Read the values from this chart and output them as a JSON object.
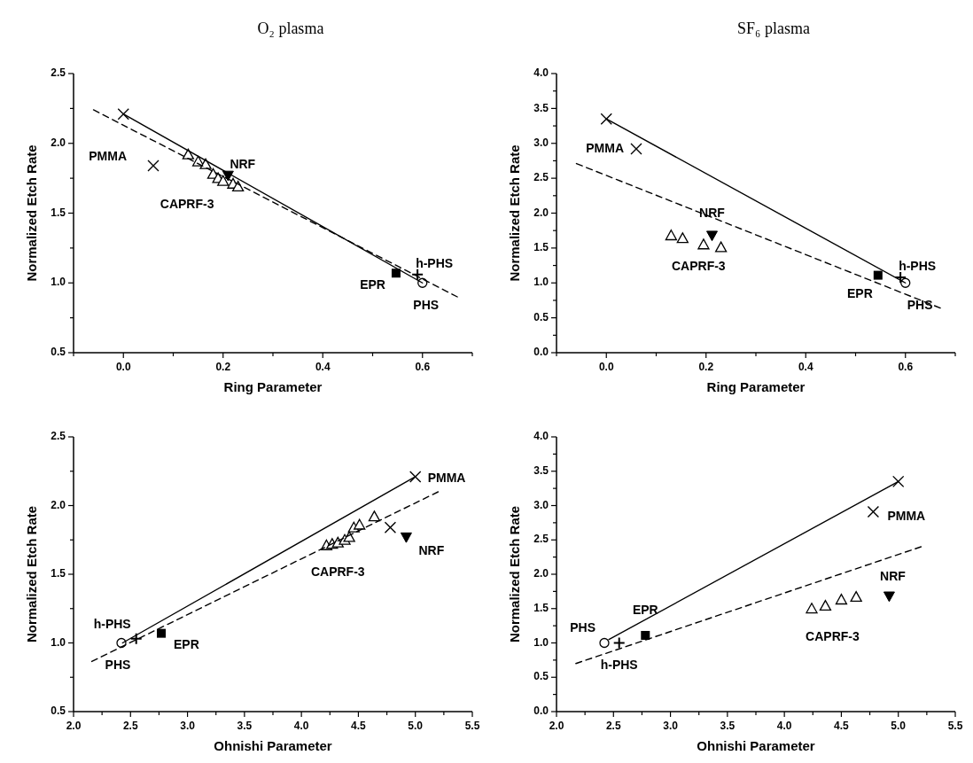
{
  "chart_data": [
    {
      "type": "scatter",
      "title": "O₂ plasma",
      "xlabel": "Ring Parameter",
      "ylabel": "Normalized Etch Rate",
      "xlim": [
        -0.1,
        0.7
      ],
      "ylim": [
        0.5,
        2.5
      ],
      "xticks": [
        {
          "value": -0.1,
          "label": null
        },
        {
          "value": 0,
          "label": "0.0"
        },
        {
          "value": 0.1,
          "label": null
        },
        0.2,
        {
          "value": 0.3,
          "label": null
        },
        0.4,
        {
          "value": 0.5,
          "label": null
        },
        0.6,
        {
          "value": 0.7,
          "label": null
        }
      ],
      "yticks": [
        0.5,
        {
          "value": 0.75,
          "label": null
        },
        {
          "value": 1,
          "label": "1.0"
        },
        {
          "value": 1.25,
          "label": null
        },
        1.5,
        {
          "value": 1.75,
          "label": null
        },
        {
          "value": 2,
          "label": "2.0"
        },
        {
          "value": 2.25,
          "label": null
        },
        2.5
      ],
      "series": [
        {
          "name": "PMMA",
          "color": "#000000",
          "marker": "cross",
          "x": [
            0.0,
            0.06
          ],
          "values": [
            2.21,
            1.84
          ]
        },
        {
          "name": "CAPRF-3",
          "color": "#000000",
          "marker": "triangle",
          "x": [
            0.13,
            0.15,
            0.165,
            0.18,
            0.19,
            0.2,
            0.22,
            0.23
          ],
          "values": [
            1.92,
            1.87,
            1.85,
            1.78,
            1.75,
            1.73,
            1.71,
            1.69
          ]
        },
        {
          "name": "NRF",
          "color": "#000000",
          "marker": "triangle-down",
          "x": [
            0.21
          ],
          "values": [
            1.77
          ]
        },
        {
          "name": "EPR",
          "color": "#000000",
          "marker": "square",
          "x": [
            0.547
          ],
          "values": [
            1.07
          ]
        },
        {
          "name": "h-PHS",
          "color": "#000000",
          "marker": "plus",
          "x": [
            0.59
          ],
          "values": [
            1.06
          ]
        },
        {
          "name": "PHS",
          "color": "#000000",
          "marker": "circle",
          "x": [
            0.6
          ],
          "values": [
            1.0
          ]
        },
        {
          "type": "line",
          "color": "#000000",
          "line_style": "solid",
          "marker": "none",
          "x": [
            0.0,
            0.6
          ],
          "values": [
            2.21,
            1.0
          ]
        },
        {
          "type": "line",
          "color": "#000000",
          "line_style": "dashed",
          "marker": "none",
          "x": [
            -0.06,
            0.67
          ],
          "values": [
            2.24,
            0.9
          ]
        }
      ]
    },
    {
      "type": "scatter",
      "title": "SF₆ plasma",
      "xlabel": "Ring Parameter",
      "ylabel": "Normalized Etch Rate",
      "xlim": [
        -0.1,
        0.7
      ],
      "ylim": [
        0,
        4
      ],
      "xticks": [
        {
          "value": -0.1,
          "label": null
        },
        {
          "value": 0,
          "label": "0.0"
        },
        {
          "value": 0.1,
          "label": null
        },
        0.2,
        {
          "value": 0.3,
          "label": null
        },
        0.4,
        {
          "value": 0.5,
          "label": null
        },
        0.6,
        {
          "value": 0.7,
          "label": null
        }
      ],
      "yticks": [
        {
          "value": 0,
          "label": "0.0"
        },
        {
          "value": 0.25,
          "label": null
        },
        0.5,
        {
          "value": 0.75,
          "label": null
        },
        {
          "value": 1,
          "label": "1.0"
        },
        {
          "value": 1.25,
          "label": null
        },
        1.5,
        {
          "value": 1.75,
          "label": null
        },
        {
          "value": 2,
          "label": "2.0"
        },
        {
          "value": 2.25,
          "label": null
        },
        2.5,
        {
          "value": 2.75,
          "label": null
        },
        {
          "value": 3,
          "label": "3.0"
        },
        {
          "value": 3.25,
          "label": null
        },
        3.5,
        {
          "value": 3.75,
          "label": null
        },
        {
          "value": 4,
          "label": "4.0"
        }
      ],
      "series": [
        {
          "name": "PMMA",
          "color": "#000000",
          "marker": "cross",
          "x": [
            0.0,
            0.06
          ],
          "values": [
            3.35,
            2.92
          ]
        },
        {
          "name": "CAPRF-3",
          "color": "#000000",
          "marker": "triangle",
          "x": [
            0.13,
            0.153,
            0.195,
            0.23
          ],
          "values": [
            1.68,
            1.64,
            1.55,
            1.51
          ]
        },
        {
          "name": "NRF",
          "color": "#000000",
          "marker": "triangle-down",
          "x": [
            0.212
          ],
          "values": [
            1.68
          ]
        },
        {
          "name": "EPR",
          "color": "#000000",
          "marker": "square",
          "x": [
            0.545
          ],
          "values": [
            1.11
          ]
        },
        {
          "name": "h-PHS",
          "color": "#000000",
          "marker": "plus",
          "x": [
            0.59
          ],
          "values": [
            1.08
          ]
        },
        {
          "name": "PHS",
          "color": "#000000",
          "marker": "circle",
          "x": [
            0.6
          ],
          "values": [
            1.0
          ]
        },
        {
          "type": "line",
          "color": "#000000",
          "line_style": "solid",
          "marker": "none",
          "x": [
            0.0,
            0.6
          ],
          "values": [
            3.35,
            1.0
          ]
        },
        {
          "type": "line",
          "color": "#000000",
          "line_style": "dashed",
          "marker": "none",
          "x": [
            -0.06,
            0.67
          ],
          "values": [
            2.71,
            0.64
          ]
        }
      ]
    },
    {
      "type": "scatter",
      "xlabel": "Ohnishi Parameter",
      "ylabel": "Normalized Etch Rate",
      "xlim": [
        2,
        5.5
      ],
      "ylim": [
        0.5,
        2.5
      ],
      "xticks": [
        {
          "value": 2,
          "label": "2.0"
        },
        {
          "value": 2.25,
          "label": null
        },
        2.5,
        {
          "value": 2.75,
          "label": null
        },
        {
          "value": 3,
          "label": "3.0"
        },
        {
          "value": 3.25,
          "label": null
        },
        3.5,
        {
          "value": 3.75,
          "label": null
        },
        {
          "value": 4,
          "label": "4.0"
        },
        {
          "value": 4.25,
          "label": null
        },
        4.5,
        {
          "value": 4.75,
          "label": null
        },
        {
          "value": 5,
          "label": "5.0"
        },
        {
          "value": 5.25,
          "label": null
        },
        5.5
      ],
      "yticks": [
        0.5,
        {
          "value": 0.75,
          "label": null
        },
        {
          "value": 1,
          "label": "1.0"
        },
        {
          "value": 1.25,
          "label": null
        },
        1.5,
        {
          "value": 1.75,
          "label": null
        },
        {
          "value": 2,
          "label": "2.0"
        },
        {
          "value": 2.25,
          "label": null
        },
        2.5
      ],
      "series": [
        {
          "name": "PMMA",
          "color": "#000000",
          "marker": "cross",
          "x": [
            5.0,
            4.78
          ],
          "values": [
            2.21,
            1.84
          ]
        },
        {
          "name": "CAPRF-3",
          "color": "#000000",
          "marker": "triangle",
          "x": [
            4.22,
            4.27,
            4.32,
            4.38,
            4.42,
            4.46,
            4.51,
            4.64
          ],
          "values": [
            1.71,
            1.72,
            1.73,
            1.75,
            1.77,
            1.84,
            1.86,
            1.92
          ]
        },
        {
          "name": "NRF",
          "color": "#000000",
          "marker": "triangle-down",
          "x": [
            4.92
          ],
          "values": [
            1.77
          ]
        },
        {
          "name": "EPR",
          "color": "#000000",
          "marker": "square",
          "x": [
            2.77
          ],
          "values": [
            1.07
          ]
        },
        {
          "name": "h-PHS",
          "color": "#000000",
          "marker": "plus",
          "x": [
            2.55
          ],
          "values": [
            1.03
          ]
        },
        {
          "name": "PHS",
          "color": "#000000",
          "marker": "circle",
          "x": [
            2.42
          ],
          "values": [
            1.0
          ]
        },
        {
          "type": "line",
          "color": "#000000",
          "line_style": "solid",
          "marker": "none",
          "x": [
            2.43,
            5.0
          ],
          "values": [
            1.0,
            2.21
          ]
        },
        {
          "type": "line",
          "color": "#000000",
          "line_style": "dashed",
          "marker": "none",
          "x": [
            2.16,
            5.2
          ],
          "values": [
            0.865,
            2.1
          ]
        }
      ]
    },
    {
      "type": "scatter",
      "xlabel": "Ohnishi Parameter",
      "ylabel": "Normalized Etch Rate",
      "xlim": [
        2,
        5.5
      ],
      "ylim": [
        0,
        4
      ],
      "xticks": [
        {
          "value": 2,
          "label": "2.0"
        },
        {
          "value": 2.25,
          "label": null
        },
        2.5,
        {
          "value": 2.75,
          "label": null
        },
        {
          "value": 3,
          "label": "3.0"
        },
        {
          "value": 3.25,
          "label": null
        },
        3.5,
        {
          "value": 3.75,
          "label": null
        },
        {
          "value": 4,
          "label": "4.0"
        },
        {
          "value": 4.25,
          "label": null
        },
        4.5,
        {
          "value": 4.75,
          "label": null
        },
        {
          "value": 5,
          "label": "5.0"
        },
        {
          "value": 5.25,
          "label": null
        },
        5.5
      ],
      "yticks": [
        {
          "value": 0,
          "label": "0.0"
        },
        {
          "value": 0.25,
          "label": null
        },
        0.5,
        {
          "value": 0.75,
          "label": null
        },
        {
          "value": 1,
          "label": "1.0"
        },
        {
          "value": 1.25,
          "label": null
        },
        1.5,
        {
          "value": 1.75,
          "label": null
        },
        {
          "value": 2,
          "label": "2.0"
        },
        {
          "value": 2.25,
          "label": null
        },
        2.5,
        {
          "value": 2.75,
          "label": null
        },
        {
          "value": 3,
          "label": "3.0"
        },
        {
          "value": 3.25,
          "label": null
        },
        3.5,
        {
          "value": 3.75,
          "label": null
        },
        {
          "value": 4,
          "label": "4.0"
        }
      ],
      "series": [
        {
          "name": "PMMA",
          "color": "#000000",
          "marker": "cross",
          "x": [
            5.0,
            4.78
          ],
          "values": [
            3.35,
            2.91
          ]
        },
        {
          "name": "CAPRF-3",
          "color": "#000000",
          "marker": "triangle",
          "x": [
            4.24,
            4.36,
            4.5,
            4.63
          ],
          "values": [
            1.5,
            1.54,
            1.63,
            1.67
          ]
        },
        {
          "name": "NRF",
          "color": "#000000",
          "marker": "triangle-down",
          "x": [
            4.92
          ],
          "values": [
            1.68
          ]
        },
        {
          "name": "EPR",
          "color": "#000000",
          "marker": "square",
          "x": [
            2.78
          ],
          "values": [
            1.11
          ]
        },
        {
          "name": "h-PHS",
          "color": "#000000",
          "marker": "plus",
          "x": [
            2.55
          ],
          "values": [
            1.0
          ]
        },
        {
          "name": "PHS",
          "color": "#000000",
          "marker": "circle",
          "x": [
            2.42
          ],
          "values": [
            1.0
          ]
        },
        {
          "type": "line",
          "color": "#000000",
          "line_style": "solid",
          "marker": "none",
          "x": [
            2.46,
            5.0
          ],
          "values": [
            1.05,
            3.35
          ]
        },
        {
          "type": "line",
          "color": "#000000",
          "line_style": "dashed",
          "marker": "none",
          "x": [
            2.17,
            5.2
          ],
          "values": [
            0.7,
            2.4
          ]
        }
      ]
    }
  ]
}
